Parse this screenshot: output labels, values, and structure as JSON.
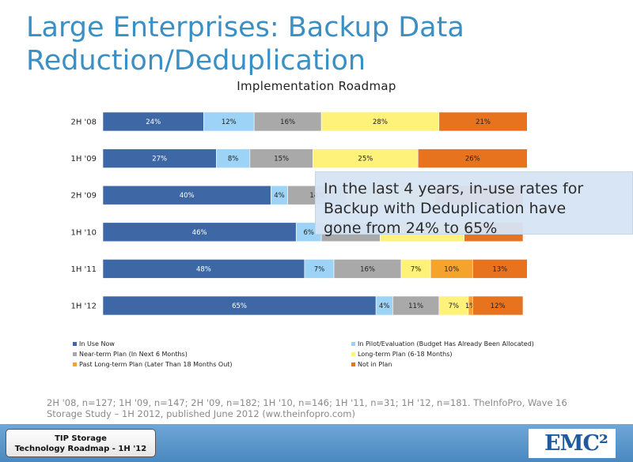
{
  "slide": {
    "title": "Large Enterprises: Backup Data\nReduction/Deduplication",
    "callout": "In the last 4 years, in-use rates for\nBackup with Deduplication have\ngone from 24% to 65%",
    "source_note": "2H '08, n=127; 1H '09, n=147; 2H '09, n=182; 1H '10, n=146; 1H '11, n=31; 1H '12, n=181.  TheInfoPro, Wave 16\nStorage Study – 1H  2012, published  June 2012 (ww.theinfopro.com)",
    "footer_badge": [
      "TIP Storage",
      "Technology Roadmap - 1H '12"
    ],
    "logo": "EMC²"
  },
  "chart_data": {
    "type": "bar",
    "orientation": "horizontal",
    "stacked": true,
    "title": "Implementation Roadmap",
    "categories": [
      "2H '08",
      "1H '09",
      "2H '09",
      "1H '10",
      "1H '11",
      "1H '12"
    ],
    "series": [
      {
        "name": "In Use Now",
        "color": "#3d68a5",
        "values": [
          24,
          27,
          40,
          46,
          48,
          65
        ],
        "labels": [
          "24%",
          "27%",
          "40%",
          "46%",
          "48%",
          "65%"
        ]
      },
      {
        "name": "In Pilot/Evaluation (Budget Has Already Been Allocated)",
        "color": "#9dd3f6",
        "values": [
          12,
          8,
          4,
          6,
          7,
          4
        ],
        "labels": [
          "12%",
          "8%",
          "4%",
          "6%",
          "7%",
          "4%"
        ]
      },
      {
        "name": "Near-term Plan (In Next 6 Months)",
        "color": "#a9a9a9",
        "values": [
          16,
          15,
          14,
          14,
          16,
          11
        ],
        "labels": [
          "16%",
          "15%",
          "14%",
          "",
          "16%",
          "11%"
        ]
      },
      {
        "name": "Long-term Plan (6-18 Months)",
        "color": "#fff27a",
        "values": [
          28,
          25,
          21,
          20,
          7,
          7
        ],
        "labels": [
          "28%",
          "25%",
          "",
          "",
          "7%",
          "7%"
        ]
      },
      {
        "name": "Past Long-term Plan (Later Than 18 Months Out)",
        "color": "#f4a42c",
        "values": [
          0,
          0,
          0,
          0,
          10,
          1
        ],
        "labels": [
          "",
          "",
          "",
          "",
          "10%",
          "1%"
        ]
      },
      {
        "name": "Not in Plan",
        "color": "#e8731f",
        "values": [
          21,
          26,
          21,
          14,
          13,
          12
        ],
        "labels": [
          "21%",
          "26%",
          "",
          "",
          "13%",
          "12%"
        ]
      }
    ],
    "xlim": [
      0,
      100
    ],
    "grid": false,
    "legend_position": "bottom"
  }
}
